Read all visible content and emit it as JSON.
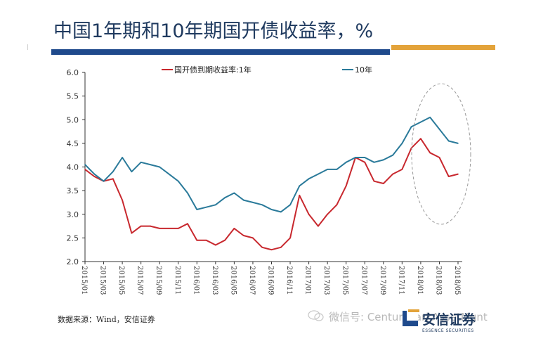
{
  "header": {
    "title": "中国1年期和10年期国开债收益率，%"
  },
  "footer": {
    "source": "数据来源：Wind，安信证券",
    "watermark": "微信号: CenturyParkAssetMgnt",
    "logo_cn": "安信证券",
    "logo_en": "ESSENCE SECURITIES"
  },
  "colors": {
    "series_1y": "#c8282e",
    "series_10y": "#2a7a9a",
    "title": "#1f3a5f",
    "bar_blue": "#1f4a8c",
    "bar_orange": "#e3a33a"
  },
  "chart_data": {
    "type": "line",
    "title": "中国1年期和10年期国开债收益率，%",
    "xlabel": "",
    "ylabel": "",
    "ylim": [
      2.0,
      6.0
    ],
    "yticks": [
      "2.0",
      "2.5",
      "3.0",
      "3.5",
      "4.0",
      "4.5",
      "5.0",
      "5.5",
      "6.0"
    ],
    "xticks": [
      "2015/01",
      "2015/03",
      "2015/05",
      "2015/07",
      "2015/09",
      "2015/11",
      "2016/01",
      "2016/03",
      "2016/05",
      "2016/07",
      "2016/09",
      "2016/11",
      "2017/01",
      "2017/03",
      "2017/05",
      "2017/07",
      "2017/09",
      "2017/11",
      "2018/01",
      "2018/03",
      "2018/05"
    ],
    "legend_position": "top",
    "grid": false,
    "x": [
      "2015/01",
      "2015/02",
      "2015/03",
      "2015/04",
      "2015/05",
      "2015/06",
      "2015/07",
      "2015/08",
      "2015/09",
      "2015/10",
      "2015/11",
      "2015/12",
      "2016/01",
      "2016/02",
      "2016/03",
      "2016/04",
      "2016/05",
      "2016/06",
      "2016/07",
      "2016/08",
      "2016/09",
      "2016/10",
      "2016/11",
      "2016/12",
      "2017/01",
      "2017/02",
      "2017/03",
      "2017/04",
      "2017/05",
      "2017/06",
      "2017/07",
      "2017/08",
      "2017/09",
      "2017/10",
      "2017/11",
      "2017/12",
      "2018/01",
      "2018/02",
      "2018/03",
      "2018/04",
      "2018/05"
    ],
    "series": [
      {
        "name": "国开债到期收益率:1年",
        "color": "#c8282e",
        "values": [
          3.95,
          3.8,
          3.7,
          3.75,
          3.3,
          2.6,
          2.75,
          2.75,
          2.7,
          2.7,
          2.7,
          2.8,
          2.45,
          2.45,
          2.35,
          2.45,
          2.7,
          2.55,
          2.5,
          2.3,
          2.25,
          2.3,
          2.5,
          3.4,
          3.0,
          2.75,
          3.0,
          3.2,
          3.6,
          4.2,
          4.1,
          3.7,
          3.65,
          3.85,
          3.95,
          4.4,
          4.6,
          4.3,
          4.2,
          3.8,
          3.85
        ]
      },
      {
        "name": "10年",
        "color": "#2a7a9a",
        "values": [
          4.05,
          3.85,
          3.7,
          3.9,
          4.2,
          3.9,
          4.1,
          4.05,
          4.0,
          3.85,
          3.7,
          3.45,
          3.1,
          3.15,
          3.2,
          3.35,
          3.45,
          3.3,
          3.25,
          3.2,
          3.1,
          3.05,
          3.2,
          3.6,
          3.75,
          3.85,
          3.95,
          3.95,
          4.1,
          4.2,
          4.2,
          4.1,
          4.15,
          4.25,
          4.5,
          4.85,
          4.95,
          5.05,
          4.8,
          4.55,
          4.5
        ]
      }
    ],
    "annotation": "dashed ellipse highlighting 2018 segment"
  }
}
